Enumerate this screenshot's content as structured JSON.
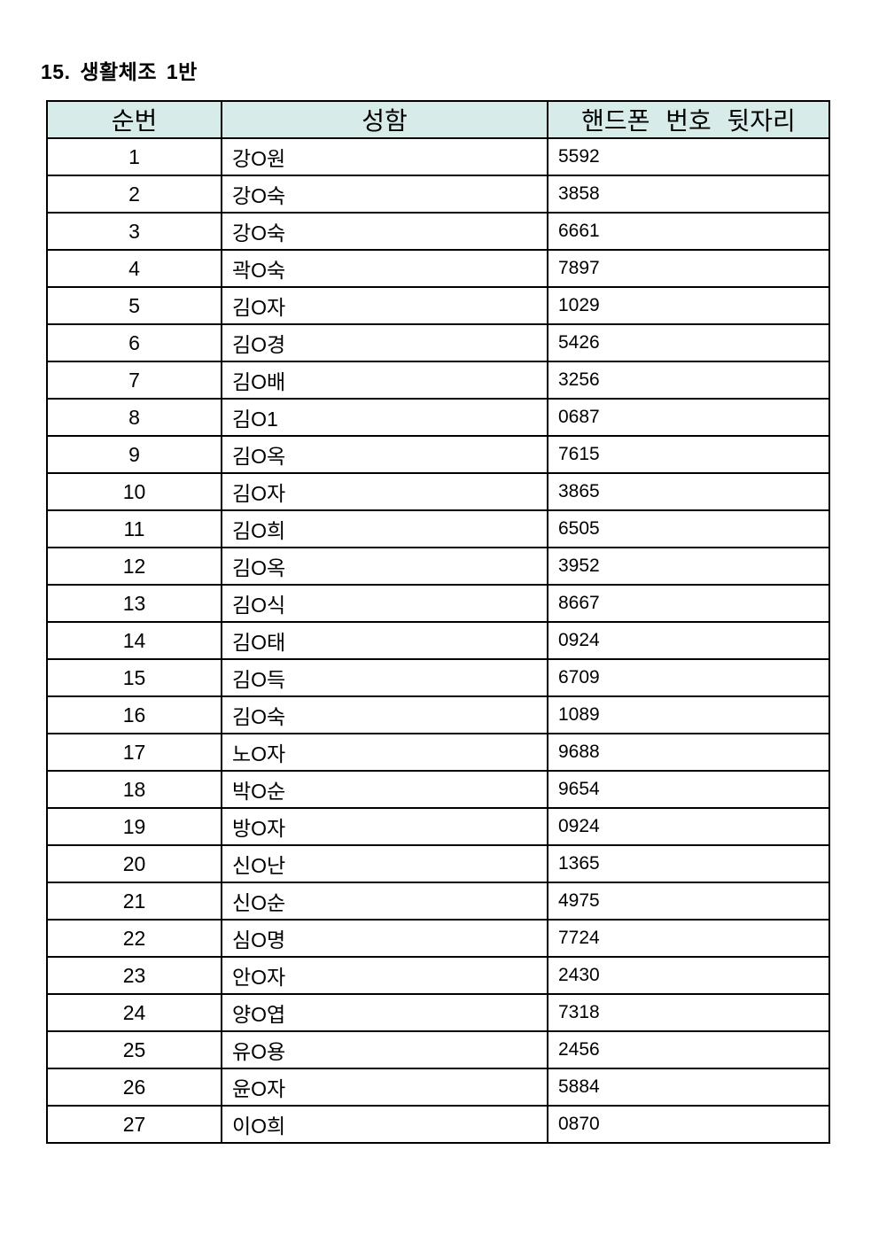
{
  "page": {
    "title": "15. 생활체조 1반"
  },
  "colors": {
    "page_bg": "#ffffff",
    "header_bg": "#d7ebe8",
    "border": "#000000",
    "text": "#000000"
  },
  "table": {
    "columns": [
      "순번",
      "성함",
      "핸드폰 번호 뒷자리"
    ],
    "rows": [
      {
        "no": "1",
        "name": "강O원",
        "phone": "5592"
      },
      {
        "no": "2",
        "name": "강O숙",
        "phone": "3858"
      },
      {
        "no": "3",
        "name": "강O숙",
        "phone": "6661"
      },
      {
        "no": "4",
        "name": "곽O숙",
        "phone": "7897"
      },
      {
        "no": "5",
        "name": "김O자",
        "phone": "1029"
      },
      {
        "no": "6",
        "name": "김O경",
        "phone": "5426"
      },
      {
        "no": "7",
        "name": "김O배",
        "phone": "3256"
      },
      {
        "no": "8",
        "name": "김O1",
        "phone": "0687"
      },
      {
        "no": "9",
        "name": "김O옥",
        "phone": "7615"
      },
      {
        "no": "10",
        "name": "김O자",
        "phone": "3865"
      },
      {
        "no": "11",
        "name": "김O희",
        "phone": "6505"
      },
      {
        "no": "12",
        "name": "김O옥",
        "phone": "3952"
      },
      {
        "no": "13",
        "name": "김O식",
        "phone": "8667"
      },
      {
        "no": "14",
        "name": "김O태",
        "phone": "0924"
      },
      {
        "no": "15",
        "name": "김O득",
        "phone": "6709"
      },
      {
        "no": "16",
        "name": "김O숙",
        "phone": "1089"
      },
      {
        "no": "17",
        "name": "노O자",
        "phone": "9688"
      },
      {
        "no": "18",
        "name": "박O순",
        "phone": "9654"
      },
      {
        "no": "19",
        "name": "방O자",
        "phone": "0924"
      },
      {
        "no": "20",
        "name": "신O난",
        "phone": "1365"
      },
      {
        "no": "21",
        "name": "신O순",
        "phone": "4975"
      },
      {
        "no": "22",
        "name": "심O명",
        "phone": "7724"
      },
      {
        "no": "23",
        "name": "안O자",
        "phone": "2430"
      },
      {
        "no": "24",
        "name": "양O엽",
        "phone": "7318"
      },
      {
        "no": "25",
        "name": "유O용",
        "phone": "2456"
      },
      {
        "no": "26",
        "name": "윤O자",
        "phone": "5884"
      },
      {
        "no": "27",
        "name": "이O희",
        "phone": "0870"
      }
    ]
  }
}
